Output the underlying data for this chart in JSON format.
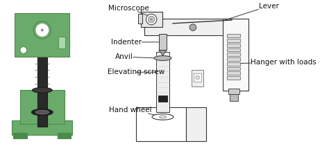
{
  "bg_color": "#ffffff",
  "left_machine": {
    "body_color": "#6aaa6a",
    "body_dark": "#4a8a4a",
    "black": "#1a1a1a",
    "grey": "#888888"
  },
  "labels": {
    "microscope": "Microscope",
    "lever": "Lever",
    "indenter": "Indenter",
    "anvil": "Anvil",
    "elevating_screw": "Elevating screw",
    "hand_wheel": "Hand wheel",
    "hanger": "Hanger with loads"
  },
  "font_size": 7.5
}
